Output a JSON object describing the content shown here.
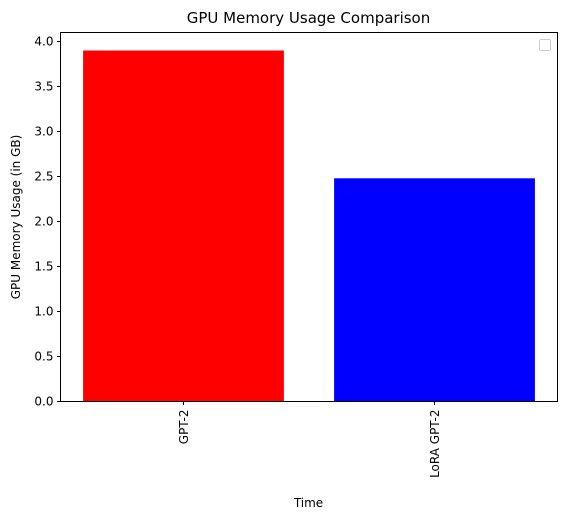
{
  "chart_data": {
    "type": "bar",
    "title": "GPU Memory Usage Comparison",
    "xlabel": "Time",
    "ylabel": "GPU Memory Usage (in GB)",
    "categories": [
      "GPT-2",
      "LoRA GPT-2"
    ],
    "values": [
      3.9,
      2.48
    ],
    "bar_colors": [
      "#ff0000",
      "#0000ff"
    ],
    "ylim": [
      0,
      4.1
    ],
    "yticks": [
      0.0,
      0.5,
      1.0,
      1.5,
      2.0,
      2.5,
      3.0,
      3.5,
      4.0
    ],
    "ytick_labels": [
      "0.0",
      "0.5",
      "1.0",
      "1.5",
      "2.0",
      "2.5",
      "3.0",
      "3.5",
      "4.0"
    ],
    "xtick_rotation": "vertical",
    "grid": false,
    "legend": {
      "placement": "upper-right",
      "entries": []
    }
  }
}
